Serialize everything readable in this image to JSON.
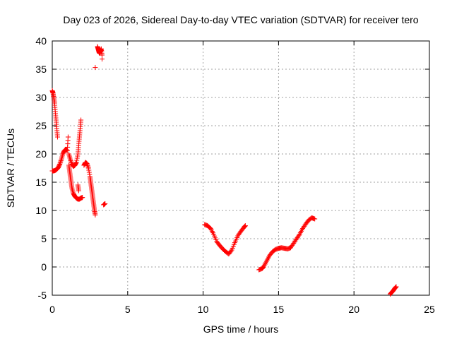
{
  "chart_data": {
    "type": "scatter",
    "title": "Day 023 of 2026, Sidereal Day-to-day VTEC variation (SDTVAR) for receiver tero",
    "xlabel": "GPS time / hours",
    "ylabel": "SDTVAR / TECUs",
    "xlim": [
      0,
      25
    ],
    "ylim": [
      -5,
      40
    ],
    "xticks": [
      0,
      5,
      10,
      15,
      20,
      25
    ],
    "yticks": [
      -5,
      0,
      5,
      10,
      15,
      20,
      25,
      30,
      35,
      40
    ],
    "grid": true,
    "marker": "plus",
    "color": "#ff0000",
    "series": [
      {
        "values": [
          [
            0.0,
            31.2
          ],
          [
            0.05,
            30.8
          ],
          [
            0.1,
            30.0
          ],
          [
            0.15,
            29.0
          ],
          [
            0.2,
            27.5
          ],
          [
            0.25,
            26.0
          ],
          [
            0.3,
            24.5
          ],
          [
            0.35,
            23.0
          ],
          [
            0.0,
            17.0
          ],
          [
            0.1,
            17.0
          ],
          [
            0.2,
            17.1
          ],
          [
            0.3,
            17.3
          ],
          [
            0.4,
            17.6
          ],
          [
            0.5,
            18.2
          ],
          [
            0.6,
            19.0
          ],
          [
            0.7,
            20.0
          ],
          [
            0.8,
            20.6
          ],
          [
            0.9,
            20.8
          ],
          [
            1.0,
            20.6
          ],
          [
            1.05,
            23.0
          ],
          [
            1.1,
            20.0
          ],
          [
            1.2,
            19.0
          ],
          [
            1.3,
            18.2
          ],
          [
            1.4,
            17.8
          ],
          [
            1.5,
            18.0
          ],
          [
            1.6,
            18.5
          ],
          [
            1.7,
            20.0
          ],
          [
            1.75,
            21.5
          ],
          [
            1.8,
            23.0
          ],
          [
            1.85,
            24.5
          ],
          [
            1.9,
            26.0
          ],
          [
            1.1,
            18.0
          ],
          [
            1.15,
            17.0
          ],
          [
            1.2,
            16.0
          ],
          [
            1.25,
            15.0
          ],
          [
            1.3,
            14.0
          ],
          [
            1.4,
            13.0
          ],
          [
            1.5,
            12.5
          ],
          [
            1.6,
            12.2
          ],
          [
            1.7,
            12.0
          ],
          [
            1.8,
            12.0
          ],
          [
            1.9,
            12.2
          ],
          [
            2.0,
            12.3
          ],
          [
            1.7,
            14.5
          ],
          [
            1.75,
            13.5
          ],
          [
            2.1,
            18.0
          ],
          [
            2.2,
            18.5
          ],
          [
            2.3,
            18.3
          ],
          [
            2.4,
            17.5
          ],
          [
            2.5,
            16.0
          ],
          [
            2.55,
            15.0
          ],
          [
            2.6,
            14.0
          ],
          [
            2.65,
            13.0
          ],
          [
            2.7,
            12.0
          ],
          [
            2.75,
            11.0
          ],
          [
            2.8,
            10.0
          ],
          [
            2.85,
            9.2
          ],
          [
            2.85,
            35.3
          ],
          [
            3.0,
            39.0
          ],
          [
            3.05,
            38.5
          ],
          [
            3.1,
            38.0
          ],
          [
            3.15,
            37.8
          ],
          [
            3.2,
            38.2
          ],
          [
            3.25,
            38.6
          ],
          [
            3.3,
            37.5
          ],
          [
            3.3,
            36.8
          ],
          [
            3.4,
            11.0
          ],
          [
            3.5,
            11.2
          ],
          [
            10.1,
            7.5
          ],
          [
            10.3,
            7.3
          ],
          [
            10.5,
            6.8
          ],
          [
            10.7,
            5.8
          ],
          [
            10.9,
            4.5
          ],
          [
            11.1,
            3.8
          ],
          [
            11.3,
            3.2
          ],
          [
            11.5,
            2.7
          ],
          [
            11.7,
            2.3
          ],
          [
            11.9,
            3.0
          ],
          [
            12.1,
            4.3
          ],
          [
            12.3,
            5.5
          ],
          [
            12.5,
            6.3
          ],
          [
            12.7,
            7.0
          ],
          [
            12.8,
            7.3
          ],
          [
            13.7,
            -0.5
          ],
          [
            13.9,
            -0.3
          ],
          [
            14.0,
            0.0
          ],
          [
            14.2,
            1.0
          ],
          [
            14.4,
            2.0
          ],
          [
            14.6,
            2.7
          ],
          [
            14.8,
            3.1
          ],
          [
            15.0,
            3.3
          ],
          [
            15.2,
            3.4
          ],
          [
            15.4,
            3.3
          ],
          [
            15.6,
            3.2
          ],
          [
            15.8,
            3.4
          ],
          [
            16.0,
            4.2
          ],
          [
            16.2,
            5.0
          ],
          [
            16.4,
            5.8
          ],
          [
            16.6,
            6.8
          ],
          [
            16.8,
            7.6
          ],
          [
            17.0,
            8.3
          ],
          [
            17.2,
            8.7
          ],
          [
            17.4,
            8.5
          ],
          [
            22.4,
            -4.8
          ],
          [
            22.5,
            -4.5
          ],
          [
            22.6,
            -4.2
          ],
          [
            22.7,
            -3.8
          ],
          [
            22.8,
            -3.5
          ]
        ]
      }
    ]
  }
}
